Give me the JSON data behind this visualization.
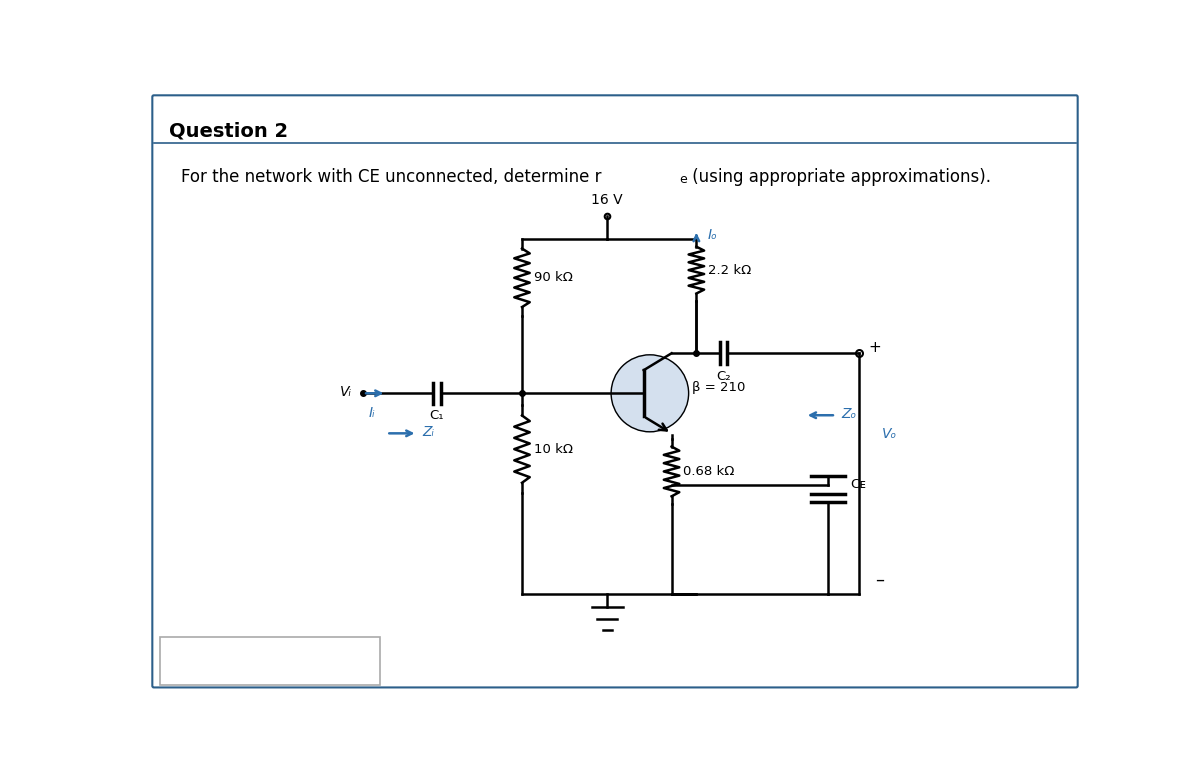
{
  "title": "Question 2",
  "question_text": "For the network with CE unconnected, determine r",
  "question_text2": " (using appropriate approximations).",
  "bg_color": "#ffffff",
  "border_color": "#2c5f8a",
  "text_color": "#000000",
  "blue_color": "#2c6fad",
  "vcc": "16 V",
  "r1": "90 kΩ",
  "r2": "10 kΩ",
  "rc": "2.2 kΩ",
  "re": "0.68 kΩ",
  "beta": "β = 210",
  "c1": "C₁",
  "c2": "C₂",
  "ce": "Cᴇ",
  "vi": "Vᵢ",
  "vo": "Vₒ",
  "zi": "Zᵢ",
  "zo": "Zₒ",
  "ii": "Iᵢ",
  "io": "Iₒ"
}
